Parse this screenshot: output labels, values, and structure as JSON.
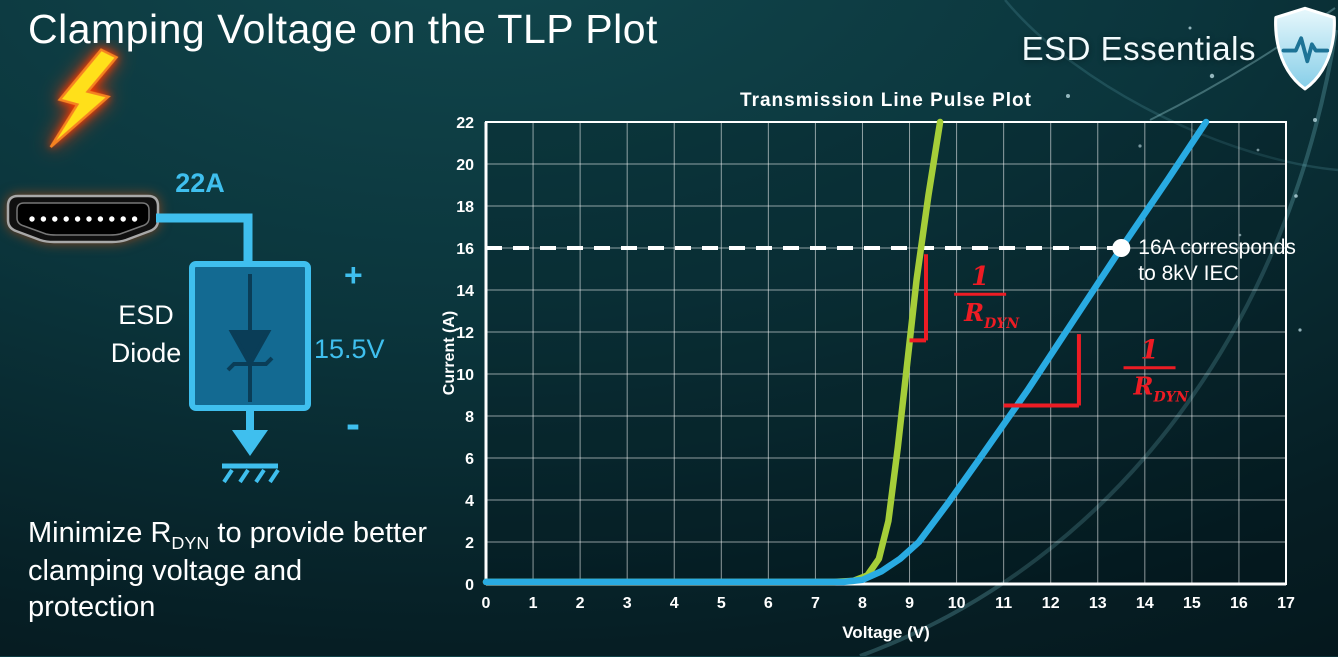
{
  "slide": {
    "title": "Clamping Voltage on the TLP Plot",
    "brand": "ESD Essentials"
  },
  "diagram": {
    "surge_current_label": "22A",
    "device_label_line1": "ESD",
    "device_label_line2": "Diode",
    "plus_label": "+",
    "clamp_voltage_label": "15.5V",
    "minus_label": "-",
    "colors": {
      "accent": "#3fbfee",
      "bolt_fill": "#ffe01a",
      "bolt_edge": "#f58220",
      "box_fill": "#136a92",
      "symbol": "#0a3d57"
    }
  },
  "caption": {
    "prefix": "Minimize R",
    "subscript": "DYN",
    "suffix": " to provide better clamping voltage and protection"
  },
  "chart_data": {
    "type": "line",
    "title": "Transmission Line Pulse Plot",
    "xlabel": "Voltage (V)",
    "ylabel": "Current (A)",
    "xlim": [
      0,
      17
    ],
    "ylim": [
      0,
      22
    ],
    "xticks": [
      0,
      1,
      2,
      3,
      4,
      5,
      6,
      7,
      8,
      9,
      10,
      11,
      12,
      13,
      14,
      15,
      16,
      17
    ],
    "yticks": [
      0,
      2,
      4,
      6,
      8,
      10,
      12,
      14,
      16,
      18,
      20,
      22
    ],
    "grid": true,
    "series": [
      {
        "name": "green-curve-low-rdyn",
        "color": "#a6ce39",
        "points": [
          [
            0,
            0.1
          ],
          [
            7.4,
            0.1
          ],
          [
            7.8,
            0.15
          ],
          [
            8.1,
            0.4
          ],
          [
            8.35,
            1.2
          ],
          [
            8.55,
            3
          ],
          [
            8.75,
            6.5
          ],
          [
            8.95,
            10.5
          ],
          [
            9.15,
            14.5
          ],
          [
            9.4,
            18.5
          ],
          [
            9.65,
            22
          ]
        ]
      },
      {
        "name": "blue-curve-higher-rdyn",
        "color": "#29abe2",
        "points": [
          [
            0,
            0.1
          ],
          [
            7.6,
            0.1
          ],
          [
            8.0,
            0.2
          ],
          [
            8.4,
            0.6
          ],
          [
            8.8,
            1.2
          ],
          [
            9.2,
            2.0
          ],
          [
            9.8,
            3.8
          ],
          [
            10.5,
            6.0
          ],
          [
            11.5,
            9.2
          ],
          [
            12.5,
            12.6
          ],
          [
            13.5,
            16.0
          ],
          [
            14.5,
            19.3
          ],
          [
            15.3,
            22
          ]
        ]
      }
    ],
    "reference_line": {
      "y": 16,
      "x_start": 0,
      "x_end": 13.5,
      "color": "#ffffff",
      "style": "dashed"
    },
    "marker_point": {
      "x": 13.5,
      "y": 16,
      "color": "#ffffff",
      "label_line1": "16A corresponds",
      "label_line2": "to 8kV IEC"
    },
    "slope_annotations": [
      {
        "color": "#ed1c24",
        "segments": [
          [
            9.35,
            15.7,
            9.35,
            11.6
          ],
          [
            9.0,
            11.6,
            9.35,
            11.6
          ]
        ],
        "fraction": {
          "numerator": "1",
          "denominator_base": "R",
          "denominator_sub": "DYN"
        },
        "fraction_pos": [
          10.5,
          13.8
        ]
      },
      {
        "color": "#ed1c24",
        "segments": [
          [
            11.0,
            8.5,
            12.6,
            8.5
          ],
          [
            12.6,
            8.5,
            12.6,
            11.9
          ]
        ],
        "fraction": {
          "numerator": "1",
          "denominator_base": "R",
          "denominator_sub": "DYN"
        },
        "fraction_pos": [
          14.1,
          10.3
        ]
      }
    ]
  }
}
